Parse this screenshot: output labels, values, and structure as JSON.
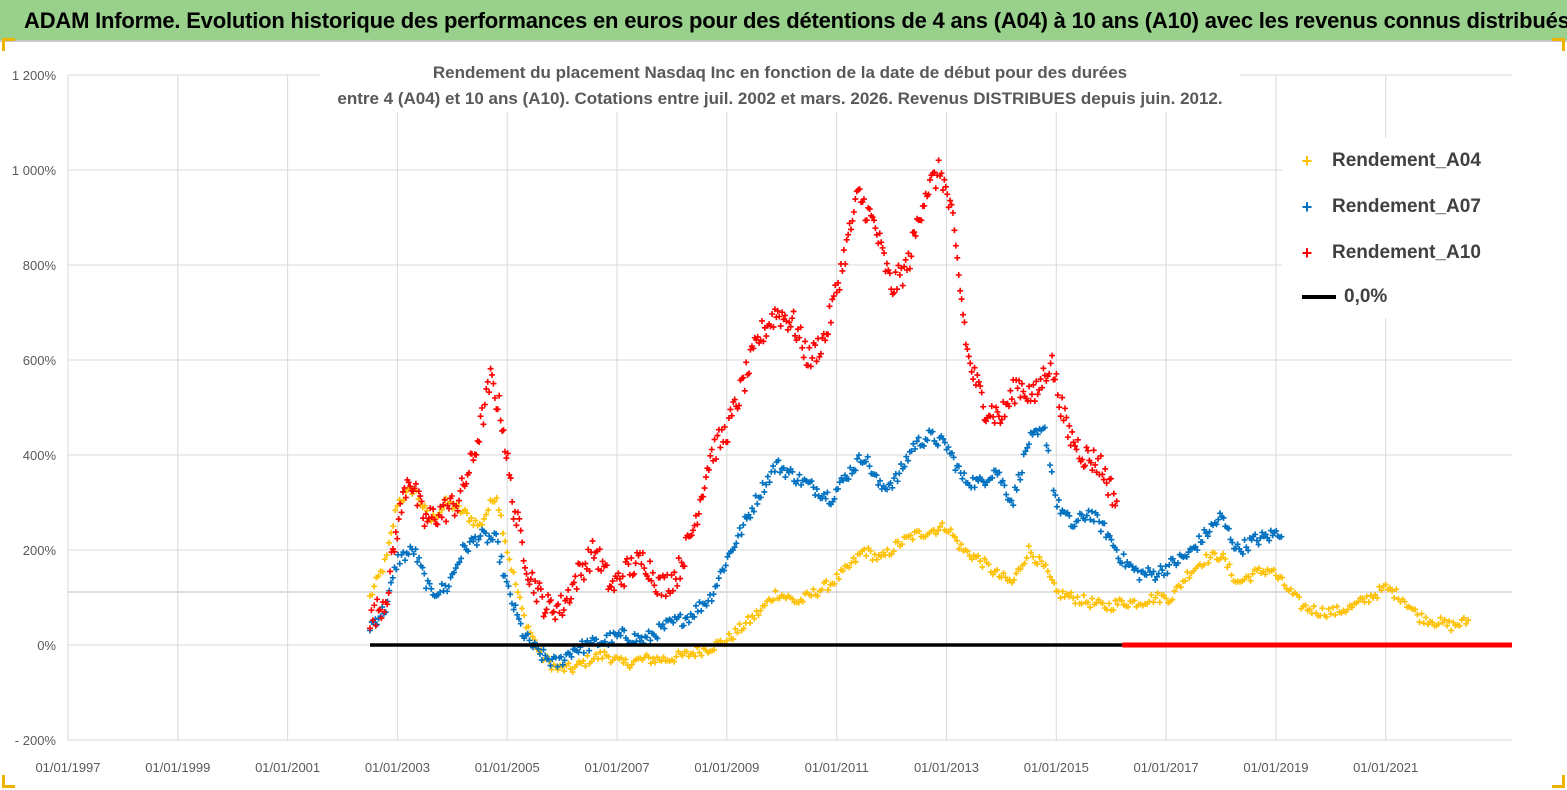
{
  "banner": {
    "title": "ADAM Informe. Evolution historique des performances en euros pour des détentions de 4 ans (A04) à 10 ans (A10) avec les revenus connus distribués"
  },
  "colors": {
    "banner": "#98d08c",
    "a04": "#ffc000",
    "a07": "#0070c0",
    "a10": "#ff0000",
    "zero": "#000000",
    "grid": "#d9d9d9"
  },
  "chart_data": {
    "type": "scatter",
    "title_line1": "Rendement du placement Nasdaq Inc en fonction de la date de début pour des durées",
    "title_line2": "entre 4 (A04) et 10 ans (A10).  Cotations entre juil. 2002 et mars. 2026. Revenus DISTRIBUES depuis juin. 2012.",
    "xlabel": "",
    "ylabel": "",
    "xlim": [
      1997.0,
      2023.3
    ],
    "ylim": [
      -200,
      1200
    ],
    "y_ticks": [
      {
        "value": -200,
        "label": "- 200%"
      },
      {
        "value": 0,
        "label": "0%"
      },
      {
        "value": 200,
        "label": "200%"
      },
      {
        "value": 400,
        "label": "400%"
      },
      {
        "value": 600,
        "label": "600%"
      },
      {
        "value": 800,
        "label": "800%"
      },
      {
        "value": 1000,
        "label": "1 000%"
      },
      {
        "value": 1200,
        "label": "1 200%"
      }
    ],
    "x_ticks": [
      {
        "value": 1997,
        "label": "01/01/1997"
      },
      {
        "value": 1999,
        "label": "01/01/1999"
      },
      {
        "value": 2001,
        "label": "01/01/2001"
      },
      {
        "value": 2003,
        "label": "01/01/2003"
      },
      {
        "value": 2005,
        "label": "01/01/2005"
      },
      {
        "value": 2007,
        "label": "01/01/2007"
      },
      {
        "value": 2009,
        "label": "01/01/2009"
      },
      {
        "value": 2011,
        "label": "01/01/2011"
      },
      {
        "value": 2013,
        "label": "01/01/2013"
      },
      {
        "value": 2015,
        "label": "01/01/2015"
      },
      {
        "value": 2017,
        "label": "01/01/2017"
      },
      {
        "value": 2019,
        "label": "01/01/2019"
      },
      {
        "value": 2021,
        "label": "01/01/2021"
      }
    ],
    "series": [
      {
        "name": "Rendement_A04",
        "color": "#ffc000",
        "x": [
          2002.5,
          2002.8,
          2003.0,
          2003.3,
          2003.6,
          2003.9,
          2004.2,
          2004.5,
          2004.8,
          2005.0,
          2005.3,
          2005.6,
          2005.9,
          2006.2,
          2006.5,
          2006.8,
          2007.1,
          2007.5,
          2007.9,
          2008.3,
          2008.7,
          2009.0,
          2009.3,
          2009.6,
          2009.9,
          2010.3,
          2010.6,
          2010.9,
          2011.2,
          2011.5,
          2011.8,
          2012.1,
          2012.4,
          2012.7,
          2013.0,
          2013.3,
          2013.6,
          2013.9,
          2014.2,
          2014.5,
          2014.8,
          2015.0,
          2015.3,
          2015.6,
          2015.9,
          2016.2,
          2016.5,
          2016.8,
          2017.1,
          2017.4,
          2017.7,
          2018.0,
          2018.3,
          2018.6,
          2018.9,
          2019.2,
          2019.5,
          2019.8,
          2020.1,
          2020.4,
          2020.7,
          2021.0,
          2021.3,
          2021.6,
          2021.9,
          2022.2,
          2022.5
        ],
        "values": [
          100,
          180,
          300,
          330,
          260,
          300,
          280,
          250,
          320,
          200,
          60,
          -20,
          -50,
          -50,
          -30,
          -20,
          -40,
          -30,
          -30,
          -20,
          -5,
          10,
          40,
          70,
          110,
          90,
          110,
          130,
          160,
          200,
          180,
          210,
          230,
          240,
          250,
          200,
          180,
          150,
          130,
          200,
          160,
          110,
          100,
          90,
          80,
          90,
          90,
          100,
          100,
          150,
          180,
          190,
          130,
          150,
          160,
          120,
          80,
          70,
          70,
          80,
          100,
          120,
          100,
          60,
          50,
          40,
          50
        ]
      },
      {
        "name": "Rendement_A07",
        "color": "#0070c0",
        "x": [
          2002.5,
          2002.8,
          2003.0,
          2003.3,
          2003.6,
          2003.9,
          2004.2,
          2004.5,
          2004.8,
          2005.0,
          2005.3,
          2005.6,
          2005.9,
          2006.2,
          2006.5,
          2006.8,
          2007.1,
          2007.5,
          2007.9,
          2008.3,
          2008.7,
          2009.0,
          2009.3,
          2009.6,
          2009.9,
          2010.3,
          2010.6,
          2010.9,
          2011.2,
          2011.5,
          2011.8,
          2012.1,
          2012.4,
          2012.7,
          2013.0,
          2013.3,
          2013.6,
          2013.9,
          2014.2,
          2014.5,
          2014.8,
          2015.0,
          2015.3,
          2015.6,
          2015.9,
          2016.2,
          2016.5,
          2016.8,
          2017.1,
          2017.4,
          2017.7,
          2018.0,
          2018.3,
          2018.6,
          2018.9,
          2019.1
        ],
        "values": [
          40,
          80,
          180,
          200,
          110,
          120,
          200,
          230,
          220,
          120,
          20,
          -20,
          -40,
          -10,
          0,
          10,
          20,
          10,
          40,
          60,
          100,
          180,
          250,
          320,
          380,
          350,
          330,
          310,
          360,
          400,
          330,
          350,
          420,
          440,
          420,
          350,
          340,
          370,
          300,
          430,
          450,
          300,
          250,
          280,
          240,
          180,
          150,
          150,
          170,
          190,
          230,
          270,
          200,
          220,
          230,
          240
        ]
      },
      {
        "name": "Rendement_A10",
        "color": "#ff0000",
        "x": [
          2002.5,
          2002.8,
          2003.0,
          2003.2,
          2003.5,
          2003.8,
          2004.1,
          2004.4,
          2004.7,
          2004.9,
          2005.1,
          2005.4,
          2005.7,
          2006.0,
          2006.3,
          2006.6,
          2006.9,
          2007.2,
          2007.5,
          2007.8,
          2008.1,
          2008.4,
          2008.7,
          2009.0,
          2009.3,
          2009.6,
          2009.9,
          2010.2,
          2010.5,
          2010.8,
          2011.1,
          2011.4,
          2011.7,
          2012.0,
          2012.3,
          2012.6,
          2012.9,
          2013.1,
          2013.4,
          2013.7,
          2014.0,
          2014.3,
          2014.6,
          2014.9,
          2015.2,
          2015.5,
          2015.8,
          2016.1
        ],
        "values": [
          50,
          100,
          250,
          360,
          260,
          280,
          300,
          400,
          560,
          480,
          300,
          150,
          80,
          80,
          150,
          200,
          120,
          160,
          180,
          120,
          150,
          250,
          400,
          450,
          550,
          650,
          700,
          680,
          600,
          650,
          800,
          950,
          880,
          750,
          800,
          950,
          1000,
          900,
          600,
          500,
          480,
          550,
          520,
          600,
          450,
          400,
          380,
          300
        ]
      },
      {
        "name": "0,0%",
        "color": "#000000",
        "x": [
          2002.5,
          2016.2
        ],
        "values": [
          0,
          0
        ]
      }
    ],
    "legend": [
      "Rendement_A04",
      "Rendement_A07",
      "Rendement_A10",
      "0,0%"
    ],
    "legend_position": "top-right",
    "grid": true
  }
}
